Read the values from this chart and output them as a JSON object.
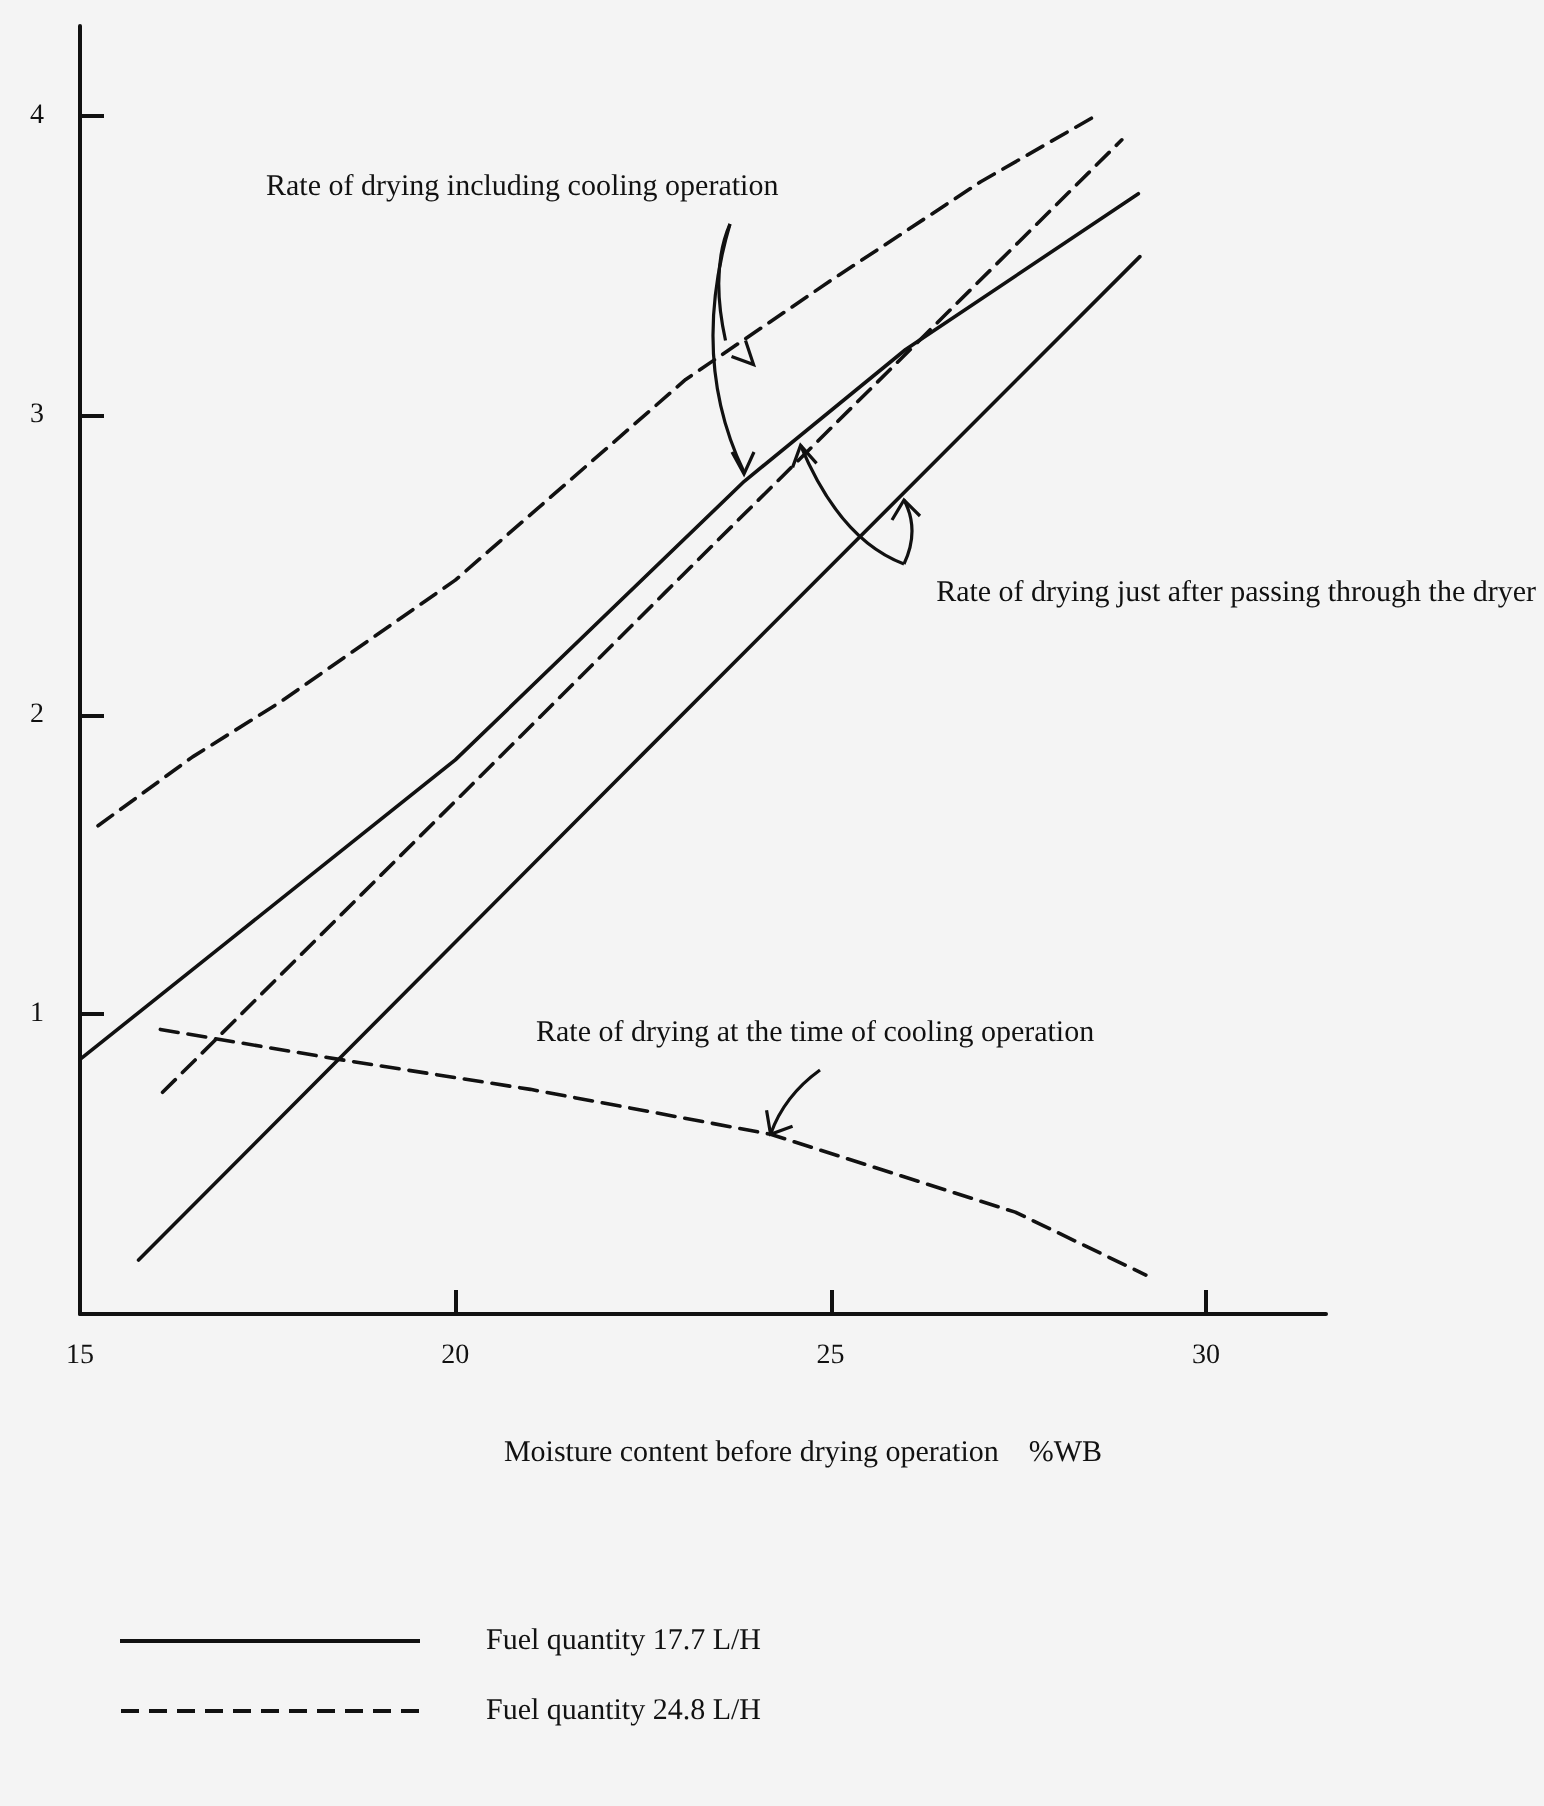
{
  "chart_data": {
    "type": "line",
    "xlabel": "Moisture content before drying operation　%WB",
    "xlim": [
      15,
      31.6
    ],
    "xticks": [
      15,
      20,
      25,
      30
    ],
    "ylim": [
      0,
      4.3
    ],
    "yticks": [
      {
        "value": 0,
        "label": null
      },
      1,
      2,
      3,
      4
    ],
    "grid": false,
    "legend": "bottom left",
    "marker": "none",
    "series": [
      {
        "name": "Fuel quantity 17.7 L/H",
        "color": "#111111",
        "line_style": "solid",
        "x": [
          15,
          17,
          20,
          23.85,
          26,
          29.1
        ],
        "values": [
          0.85,
          1.25,
          1.85,
          2.78,
          3.22,
          3.74
        ]
      },
      {
        "color": "#111111",
        "line_style": "solid",
        "x": [
          15.78,
          22.5,
          29.12
        ],
        "values": [
          0.18,
          1.87,
          3.53
        ]
      },
      {
        "name": "Fuel quantity 24.8 L/H",
        "color": "#111111",
        "line_style": "dashed",
        "x": [
          15.24,
          16.5,
          17.65,
          20,
          23.07,
          25,
          27,
          28.53
        ],
        "values": [
          1.63,
          1.86,
          2.04,
          2.45,
          3.12,
          3.45,
          3.78,
          4.0
        ]
      },
      {
        "color": "#111111",
        "line_style": "dashed",
        "x": [
          16.1,
          22.8,
          28.88
        ],
        "values": [
          0.74,
          2.41,
          3.92
        ]
      },
      {
        "color": "#111111",
        "line_style": "dashed",
        "x": [
          16.07,
          18.45,
          21,
          24.2,
          27.46,
          29.2
        ],
        "values": [
          0.95,
          0.85,
          0.75,
          0.6,
          0.34,
          0.13
        ]
      }
    ],
    "annotations": [
      {
        "text": "Rate of drying including cooling operation",
        "x": 23.6,
        "y": 3.25
      },
      {
        "text": "Rate of drying just after passing through the dryer",
        "x": 24.6,
        "y": 2.9
      },
      {
        "text": "Rate of drying at the time of cooling operation",
        "x": 24.2,
        "y": 0.6
      }
    ]
  }
}
